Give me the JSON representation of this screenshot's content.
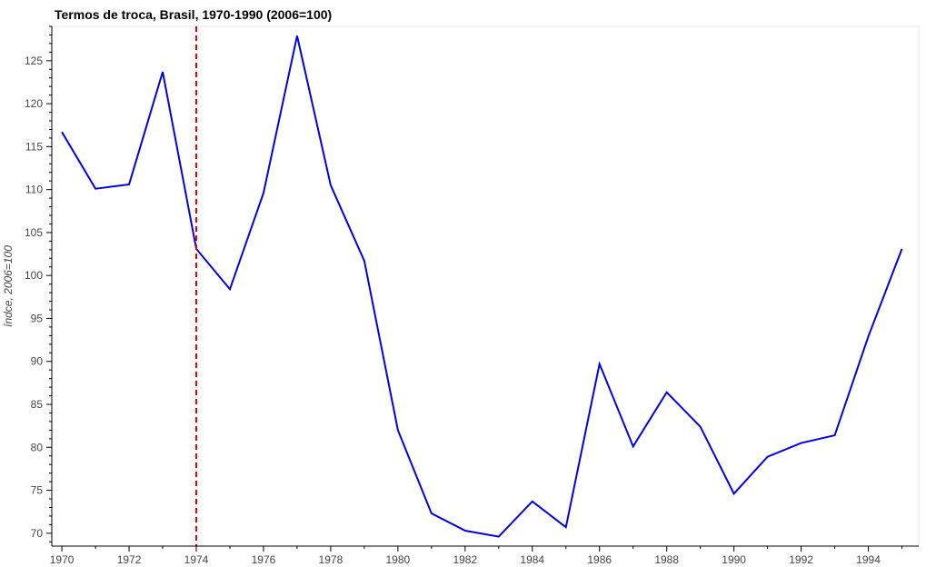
{
  "chart_data": {
    "type": "line",
    "title": "Termos de troca, Brasil, 1970-1990 (2006=100)",
    "xlabel": "",
    "ylabel": "índce, 2006=100",
    "x": [
      1970,
      1971,
      1972,
      1973,
      1974,
      1975,
      1976,
      1977,
      1978,
      1979,
      1980,
      1981,
      1982,
      1983,
      1984,
      1985,
      1986,
      1987,
      1988,
      1989,
      1990,
      1991,
      1992,
      1993,
      1994,
      1995
    ],
    "series": [
      {
        "values": [
          116.7,
          110.1,
          110.6,
          123.7,
          103.1,
          98.4,
          109.6,
          127.9,
          110.5,
          101.7,
          82.0,
          72.3,
          70.3,
          69.6,
          73.7,
          70.7,
          89.7,
          80.1,
          86.4,
          82.4,
          74.6,
          78.9,
          80.5,
          81.4,
          92.9,
          103.1
        ],
        "color": "#0000ee"
      }
    ],
    "vline": {
      "x": 1974,
      "color": "#ee0000",
      "style": "dashed"
    },
    "xlim": [
      1969.7,
      1995.5
    ],
    "ylim": [
      68.5,
      129.0
    ],
    "xticks": [
      1970,
      1972,
      1974,
      1976,
      1978,
      1980,
      1982,
      1984,
      1986,
      1988,
      1990,
      1992,
      1994
    ],
    "yticks": [
      70,
      75,
      80,
      85,
      90,
      95,
      100,
      105,
      110,
      115,
      120,
      125
    ],
    "grid": false,
    "legend": "none"
  }
}
